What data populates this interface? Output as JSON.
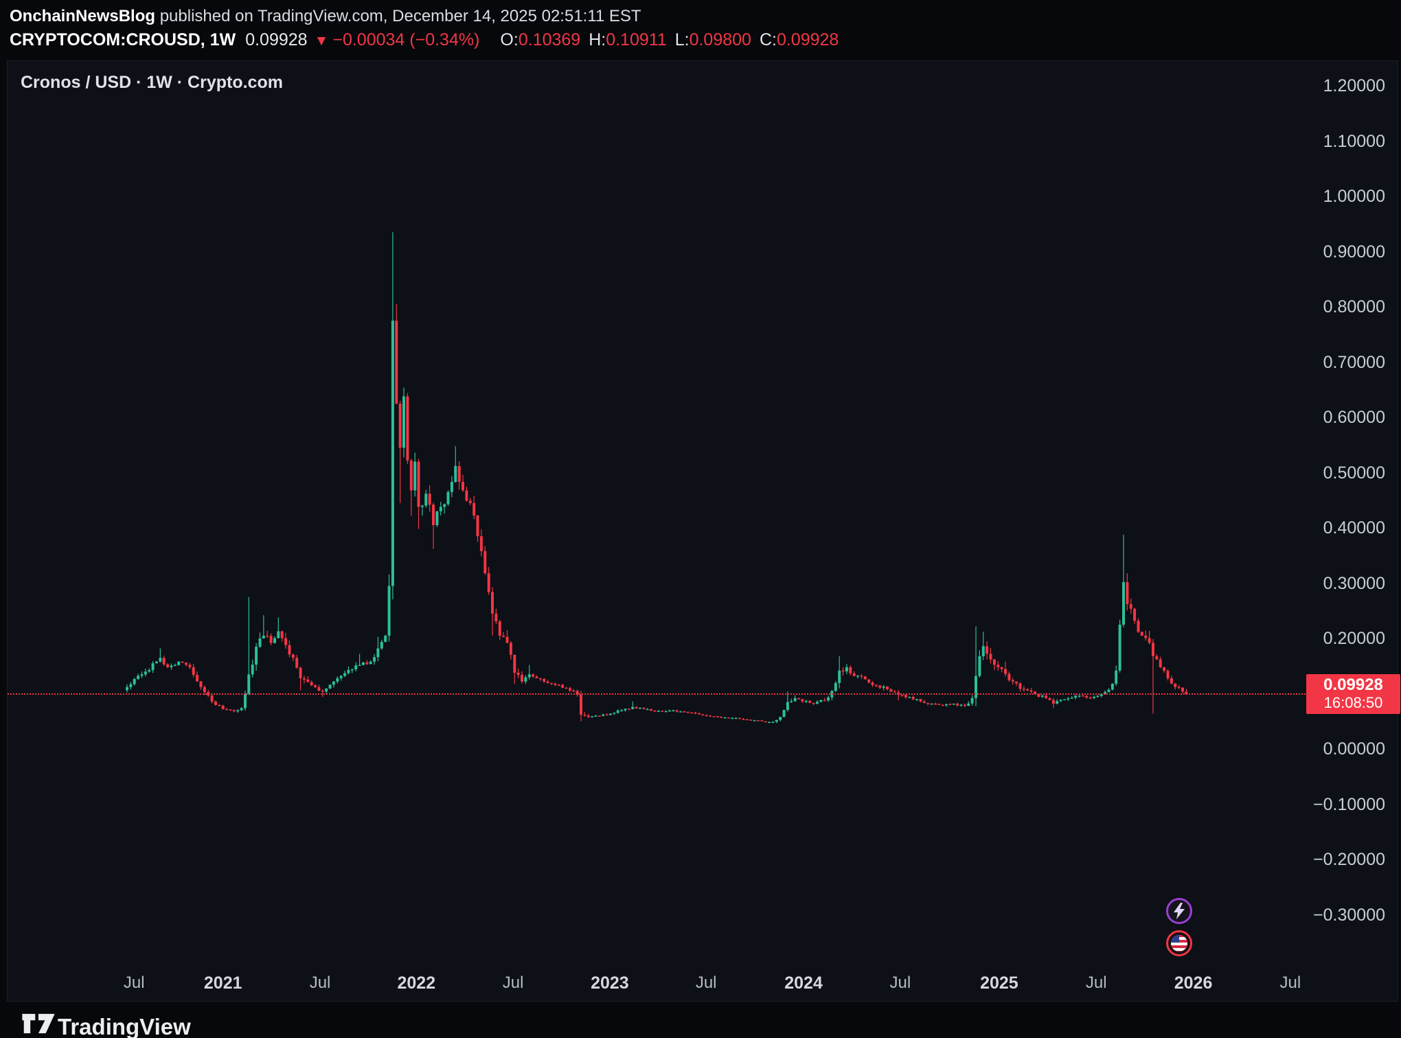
{
  "header": {
    "author": "OnchainNewsBlog",
    "published": " published on TradingView.com, December 14, 2025 02:51:11 EST"
  },
  "quote": {
    "symbol": "CRYPTOCOM:CROUSD, 1W",
    "last": "0.09928",
    "direction": "▼",
    "change": "−0.00034 (−0.34%)",
    "ohlc": [
      {
        "label": "O:",
        "value": "0.10369"
      },
      {
        "label": "H:",
        "value": "0.10911"
      },
      {
        "label": "L:",
        "value": "0.09800"
      },
      {
        "label": "C:",
        "value": "0.09928"
      }
    ]
  },
  "pane": {
    "title": "Cronos / USD · 1W · Crypto.com",
    "price_tag": {
      "price": "0.09928",
      "countdown": "16:08:50"
    }
  },
  "footer": {
    "brand": "TradingView"
  },
  "colors": {
    "up": "#2cbf9b",
    "down": "#f23645",
    "accent": "#f23645",
    "axis_text": "#c9cdd6",
    "panel_bg": "#0d1016"
  },
  "chart_data": {
    "type": "candlestick",
    "symbol": "CRYPTOCOM:CROUSD",
    "interval": "1W",
    "exchange": "Crypto.com",
    "title": "Cronos / USD · 1W · Crypto.com",
    "current_price": 0.09928,
    "y_axis": {
      "min": -0.35,
      "max": 1.25,
      "ticks": [
        {
          "label": "1.20000",
          "value": 1.2
        },
        {
          "label": "1.10000",
          "value": 1.1
        },
        {
          "label": "1.00000",
          "value": 1.0
        },
        {
          "label": "0.90000",
          "value": 0.9
        },
        {
          "label": "0.80000",
          "value": 0.8
        },
        {
          "label": "0.70000",
          "value": 0.7
        },
        {
          "label": "0.60000",
          "value": 0.6
        },
        {
          "label": "0.50000",
          "value": 0.5
        },
        {
          "label": "0.40000",
          "value": 0.4
        },
        {
          "label": "0.30000",
          "value": 0.3
        },
        {
          "label": "0.20000",
          "value": 0.2
        },
        {
          "label": "0.00000",
          "value": 0.0
        },
        {
          "label": "−0.10000",
          "value": -0.1
        },
        {
          "label": "−0.20000",
          "value": -0.2
        },
        {
          "label": "−0.30000",
          "value": -0.3
        }
      ]
    },
    "x_axis": {
      "ticks": [
        {
          "label": "Jul",
          "week": 1.9,
          "year": false
        },
        {
          "label": "2021",
          "week": 26,
          "year": true
        },
        {
          "label": "Jul",
          "week": 52.3,
          "year": false
        },
        {
          "label": "2022",
          "week": 78.4,
          "year": true
        },
        {
          "label": "Jul",
          "week": 104.6,
          "year": false
        },
        {
          "label": "2023",
          "week": 130.8,
          "year": true
        },
        {
          "label": "Jul",
          "week": 156.9,
          "year": false
        },
        {
          "label": "2024",
          "week": 183.3,
          "year": true
        },
        {
          "label": "Jul",
          "week": 209.5,
          "year": false
        },
        {
          "label": "2025",
          "week": 236.3,
          "year": true
        },
        {
          "label": "Jul",
          "week": 262.6,
          "year": false
        },
        {
          "label": "2026",
          "week": 288.9,
          "year": true
        },
        {
          "label": "Jul",
          "week": 315.2,
          "year": false
        }
      ]
    },
    "last_candle": {
      "week": 287,
      "open": 0.10369,
      "high": 0.10911,
      "low": 0.098,
      "close": 0.09928
    },
    "anchors": [
      [
        0,
        0.112,
        0.01,
        null,
        null
      ],
      [
        4,
        0.135,
        0.01,
        null,
        null
      ],
      [
        8,
        0.158,
        0.012,
        null,
        null
      ],
      [
        9,
        0.165,
        0.012,
        0.182,
        null
      ],
      [
        11,
        0.148,
        0.01,
        null,
        null
      ],
      [
        14,
        0.158,
        0.01,
        null,
        null
      ],
      [
        17,
        0.148,
        0.01,
        null,
        null
      ],
      [
        20,
        0.112,
        0.012,
        null,
        null
      ],
      [
        23,
        0.086,
        0.008,
        null,
        null
      ],
      [
        26,
        0.072,
        0.005,
        null,
        null
      ],
      [
        29,
        0.068,
        0.004,
        null,
        null
      ],
      [
        31,
        0.074,
        0.006,
        null,
        null
      ],
      [
        33,
        0.135,
        0.022,
        0.275,
        null
      ],
      [
        35,
        0.185,
        0.022,
        null,
        null
      ],
      [
        37,
        0.205,
        0.02,
        0.242,
        null
      ],
      [
        39,
        0.192,
        0.018,
        null,
        null
      ],
      [
        41,
        0.213,
        0.018,
        0.238,
        null
      ],
      [
        43,
        0.188,
        0.018,
        null,
        null
      ],
      [
        45,
        0.165,
        0.018,
        null,
        null
      ],
      [
        47,
        0.128,
        0.015,
        null,
        0.106
      ],
      [
        50,
        0.115,
        0.01,
        null,
        null
      ],
      [
        53,
        0.104,
        0.008,
        null,
        0.094
      ],
      [
        56,
        0.122,
        0.01,
        null,
        null
      ],
      [
        60,
        0.143,
        0.012,
        null,
        null
      ],
      [
        63,
        0.152,
        0.012,
        0.172,
        null
      ],
      [
        66,
        0.158,
        0.012,
        null,
        null
      ],
      [
        68,
        0.182,
        0.015,
        0.203,
        null
      ],
      [
        70,
        0.205,
        0.018,
        null,
        null
      ],
      [
        71,
        0.295,
        0.04,
        null,
        null
      ],
      [
        72,
        0.775,
        0.085,
        0.935,
        0.285
      ],
      [
        73,
        0.625,
        0.065,
        0.805,
        null
      ],
      [
        74,
        0.545,
        0.05,
        null,
        0.445
      ],
      [
        75,
        0.638,
        0.045,
        null,
        null
      ],
      [
        76,
        0.522,
        0.04,
        null,
        null
      ],
      [
        77,
        0.468,
        0.035,
        null,
        0.422
      ],
      [
        78,
        0.52,
        0.035,
        null,
        null
      ],
      [
        79,
        0.438,
        0.032,
        null,
        0.398
      ],
      [
        81,
        0.462,
        0.03,
        null,
        null
      ],
      [
        83,
        0.405,
        0.028,
        null,
        0.362
      ],
      [
        85,
        0.438,
        0.026,
        null,
        null
      ],
      [
        87,
        0.465,
        0.026,
        null,
        null
      ],
      [
        89,
        0.512,
        0.028,
        0.548,
        null
      ],
      [
        91,
        0.468,
        0.026,
        null,
        null
      ],
      [
        93,
        0.445,
        0.024,
        null,
        null
      ],
      [
        95,
        0.385,
        0.026,
        null,
        null
      ],
      [
        97,
        0.318,
        0.028,
        null,
        null
      ],
      [
        99,
        0.245,
        0.026,
        null,
        0.205
      ],
      [
        101,
        0.205,
        0.02,
        null,
        null
      ],
      [
        103,
        0.192,
        0.016,
        0.215,
        null
      ],
      [
        105,
        0.138,
        0.018,
        null,
        0.118
      ],
      [
        107,
        0.122,
        0.012,
        null,
        null
      ],
      [
        109,
        0.135,
        0.012,
        0.152,
        null
      ],
      [
        111,
        0.128,
        0.01,
        null,
        null
      ],
      [
        113,
        0.122,
        0.008,
        null,
        null
      ],
      [
        116,
        0.116,
        0.007,
        null,
        null
      ],
      [
        119,
        0.11,
        0.006,
        null,
        null
      ],
      [
        121,
        0.105,
        0.006,
        null,
        null
      ],
      [
        122,
        0.098,
        0.008,
        null,
        null
      ],
      [
        123,
        0.062,
        0.014,
        null,
        0.05
      ],
      [
        125,
        0.058,
        0.006,
        null,
        null
      ],
      [
        128,
        0.06,
        0.004,
        null,
        null
      ],
      [
        131,
        0.064,
        0.004,
        null,
        null
      ],
      [
        134,
        0.07,
        0.005,
        null,
        null
      ],
      [
        137,
        0.076,
        0.005,
        0.086,
        null
      ],
      [
        140,
        0.072,
        0.004,
        null,
        null
      ],
      [
        144,
        0.069,
        0.004,
        null,
        null
      ],
      [
        148,
        0.07,
        0.004,
        null,
        null
      ],
      [
        152,
        0.066,
        0.004,
        null,
        null
      ],
      [
        156,
        0.061,
        0.004,
        null,
        null
      ],
      [
        160,
        0.058,
        0.003,
        null,
        null
      ],
      [
        164,
        0.056,
        0.003,
        null,
        null
      ],
      [
        168,
        0.053,
        0.003,
        null,
        null
      ],
      [
        172,
        0.05,
        0.003,
        null,
        null
      ],
      [
        175,
        0.049,
        0.003,
        null,
        null
      ],
      [
        177,
        0.058,
        0.006,
        null,
        null
      ],
      [
        179,
        0.085,
        0.014,
        0.104,
        null
      ],
      [
        181,
        0.092,
        0.012,
        null,
        null
      ],
      [
        183,
        0.086,
        0.008,
        null,
        null
      ],
      [
        186,
        0.082,
        0.007,
        null,
        null
      ],
      [
        189,
        0.088,
        0.008,
        null,
        null
      ],
      [
        191,
        0.105,
        0.012,
        null,
        null
      ],
      [
        193,
        0.142,
        0.018,
        0.168,
        null
      ],
      [
        195,
        0.148,
        0.015,
        null,
        null
      ],
      [
        197,
        0.132,
        0.012,
        null,
        null
      ],
      [
        200,
        0.126,
        0.01,
        null,
        null
      ],
      [
        203,
        0.115,
        0.01,
        null,
        null
      ],
      [
        206,
        0.108,
        0.008,
        null,
        null
      ],
      [
        209,
        0.098,
        0.008,
        null,
        0.088
      ],
      [
        212,
        0.094,
        0.007,
        null,
        null
      ],
      [
        215,
        0.086,
        0.006,
        null,
        null
      ],
      [
        218,
        0.082,
        0.006,
        null,
        null
      ],
      [
        221,
        0.079,
        0.005,
        null,
        null
      ],
      [
        224,
        0.082,
        0.006,
        null,
        null
      ],
      [
        227,
        0.078,
        0.006,
        null,
        null
      ],
      [
        229,
        0.092,
        0.01,
        null,
        null
      ],
      [
        230,
        0.132,
        0.03,
        0.222,
        null
      ],
      [
        232,
        0.186,
        0.025,
        0.212,
        null
      ],
      [
        234,
        0.162,
        0.02,
        null,
        null
      ],
      [
        236,
        0.148,
        0.016,
        null,
        null
      ],
      [
        238,
        0.136,
        0.014,
        0.158,
        null
      ],
      [
        240,
        0.122,
        0.012,
        null,
        null
      ],
      [
        243,
        0.108,
        0.01,
        null,
        null
      ],
      [
        246,
        0.1,
        0.008,
        null,
        null
      ],
      [
        249,
        0.092,
        0.008,
        null,
        null
      ],
      [
        251,
        0.082,
        0.008,
        null,
        0.074
      ],
      [
        254,
        0.09,
        0.006,
        null,
        null
      ],
      [
        257,
        0.096,
        0.006,
        null,
        null
      ],
      [
        260,
        0.093,
        0.005,
        null,
        null
      ],
      [
        263,
        0.096,
        0.006,
        null,
        null
      ],
      [
        265,
        0.103,
        0.008,
        null,
        null
      ],
      [
        267,
        0.118,
        0.012,
        null,
        null
      ],
      [
        268,
        0.142,
        0.018,
        null,
        null
      ],
      [
        269,
        0.225,
        0.035,
        null,
        null
      ],
      [
        270,
        0.302,
        0.05,
        0.388,
        null
      ],
      [
        271,
        0.262,
        0.032,
        0.318,
        null
      ],
      [
        273,
        0.232,
        0.025,
        null,
        null
      ],
      [
        275,
        0.205,
        0.02,
        null,
        null
      ],
      [
        277,
        0.192,
        0.018,
        0.214,
        null
      ],
      [
        278,
        0.168,
        0.025,
        null,
        0.064
      ],
      [
        280,
        0.148,
        0.015,
        null,
        null
      ],
      [
        282,
        0.128,
        0.012,
        null,
        null
      ],
      [
        284,
        0.112,
        0.01,
        null,
        null
      ],
      [
        286,
        0.104,
        0.008,
        null,
        null
      ],
      [
        287,
        0.09928,
        0.006,
        null,
        null
      ]
    ]
  }
}
